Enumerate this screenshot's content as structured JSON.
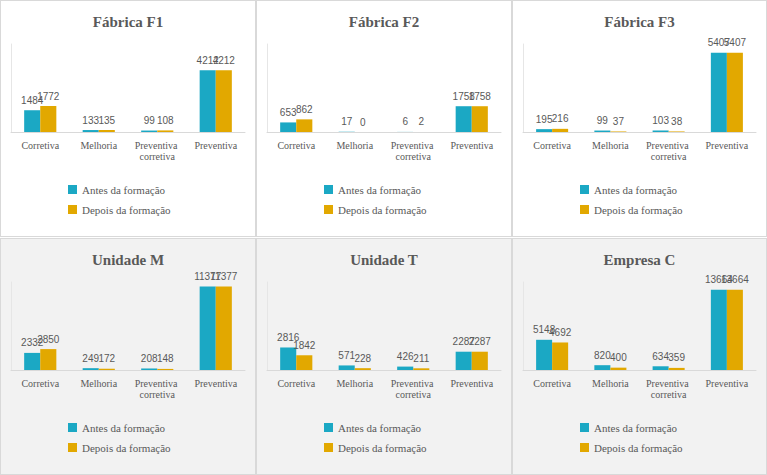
{
  "chart_data": [
    {
      "type": "bar",
      "title": "Fábrica F1",
      "categories": [
        "Corretiva",
        "Melhoria",
        "Preventiva corretiva",
        "Preventiva"
      ],
      "series": [
        {
          "name": "Antes da formação",
          "color": "#1ba8c4",
          "values": [
            1484,
            133,
            99,
            4212
          ]
        },
        {
          "name": "Depois da formação",
          "color": "#e2a800",
          "values": [
            1772,
            135,
            108,
            4212
          ]
        }
      ],
      "ylim": [
        0,
        6000
      ],
      "data_labels": true,
      "tick_labels": "x",
      "legend": "bottom",
      "grid": false
    },
    {
      "type": "bar",
      "title": "Fábrica F2",
      "categories": [
        "Corretiva",
        "Melhoria",
        "Preventiva corretiva",
        "Preventiva"
      ],
      "series": [
        {
          "name": "Antes da formação",
          "color": "#1ba8c4",
          "values": [
            653,
            17,
            6,
            1758
          ]
        },
        {
          "name": "Depois da formação",
          "color": "#e2a800",
          "values": [
            862,
            0,
            2,
            1758
          ]
        }
      ],
      "ylim": [
        0,
        6000
      ],
      "data_labels": true,
      "tick_labels": "x",
      "legend": "bottom",
      "grid": false
    },
    {
      "type": "bar",
      "title": "Fábrica F3",
      "categories": [
        "Corretiva",
        "Melhoria",
        "Preventiva corretiva",
        "Preventiva"
      ],
      "series": [
        {
          "name": "Antes da formação",
          "color": "#1ba8c4",
          "values": [
            195,
            99,
            103,
            5407
          ]
        },
        {
          "name": "Depois da formação",
          "color": "#e2a800",
          "values": [
            216,
            37,
            38,
            5407
          ]
        }
      ],
      "ylim": [
        0,
        6000
      ],
      "data_labels": true,
      "tick_labels": "x",
      "legend": "bottom",
      "grid": false
    },
    {
      "type": "bar",
      "title": "Unidade M",
      "categories": [
        "Corretiva",
        "Melhoria",
        "Preventiva corretiva",
        "Preventiva"
      ],
      "series": [
        {
          "name": "Antes da formação",
          "color": "#1ba8c4",
          "values": [
            2332,
            249,
            208,
            11377
          ]
        },
        {
          "name": "Depois da formação",
          "color": "#e2a800",
          "values": [
            2850,
            172,
            148,
            11377
          ]
        }
      ],
      "ylim": [
        0,
        12000
      ],
      "data_labels": true,
      "tick_labels": "x",
      "legend": "bottom",
      "grid": false
    },
    {
      "type": "bar",
      "title": "Unidade T",
      "categories": [
        "Corretiva",
        "Melhoria",
        "Preventiva corretiva",
        "Preventiva"
      ],
      "series": [
        {
          "name": "Antes da formação",
          "color": "#1ba8c4",
          "values": [
            2816,
            571,
            426,
            2287
          ]
        },
        {
          "name": "Depois da formação",
          "color": "#e2a800",
          "values": [
            1842,
            228,
            211,
            2287
          ]
        }
      ],
      "ylim": [
        0,
        11000
      ],
      "data_labels": true,
      "tick_labels": "x",
      "legend": "bottom",
      "grid": false
    },
    {
      "type": "bar",
      "title": "Empresa C",
      "categories": [
        "Corretiva",
        "Melhoria",
        "Preventiva corretiva",
        "Preventiva"
      ],
      "series": [
        {
          "name": "Antes da formação",
          "color": "#1ba8c4",
          "values": [
            5148,
            820,
            634,
            13664
          ]
        },
        {
          "name": "Depois da formação",
          "color": "#e2a800",
          "values": [
            4692,
            400,
            359,
            13664
          ]
        }
      ],
      "ylim": [
        0,
        15000
      ],
      "data_labels": true,
      "tick_labels": "x",
      "legend": "bottom",
      "grid": false
    }
  ]
}
